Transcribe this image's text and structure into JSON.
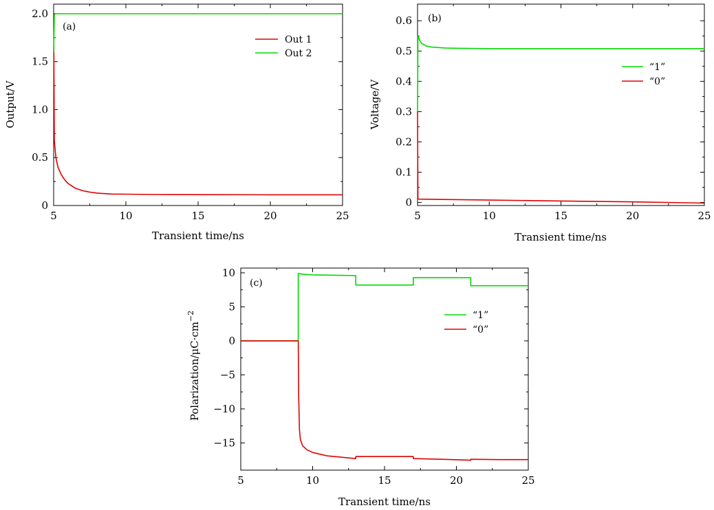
{
  "chart_data": [
    {
      "type": "line",
      "panel_label": "(a)",
      "xlabel": "Transient time/ns",
      "ylabel": "Output/V",
      "xlim": [
        5,
        25
      ],
      "ylim": [
        0,
        2.1
      ],
      "xticks": [
        5,
        10,
        15,
        20,
        25
      ],
      "xtick_labels": [
        "5",
        "10",
        "15",
        "20",
        "25"
      ],
      "yticks": [
        0,
        0.5,
        1.0,
        1.5,
        2.0
      ],
      "ytick_labels": [
        "0",
        "0.5",
        "1.0",
        "1.5",
        "2.0"
      ],
      "legend_position": "top-right",
      "grid": false,
      "series": [
        {
          "name": "Out 1",
          "color": "#e00000",
          "x": [
            5,
            5.05,
            5.15,
            5.3,
            5.5,
            5.75,
            6,
            6.5,
            7,
            7.5,
            8,
            9,
            10,
            12,
            15,
            20,
            25
          ],
          "y": [
            2.0,
            0.68,
            0.5,
            0.4,
            0.33,
            0.27,
            0.23,
            0.18,
            0.155,
            0.14,
            0.13,
            0.12,
            0.118,
            0.115,
            0.113,
            0.112,
            0.112
          ]
        },
        {
          "name": "Out 2",
          "color": "#00d800",
          "x": [
            5,
            5.05,
            5.1,
            6,
            10,
            15,
            20,
            25
          ],
          "y": [
            1.6,
            1.98,
            2.0,
            2.0,
            2.0,
            2.0,
            2.0,
            2.0
          ]
        }
      ]
    },
    {
      "type": "line",
      "panel_label": "(b)",
      "xlabel": "Transient time/ns",
      "ylabel": "Voltage/V",
      "xlim": [
        5,
        25
      ],
      "ylim": [
        -0.01,
        0.655
      ],
      "xticks": [
        5,
        10,
        15,
        20,
        25
      ],
      "xtick_labels": [
        "5",
        "10",
        "15",
        "20",
        "25"
      ],
      "yticks": [
        0,
        0.1,
        0.2,
        0.3,
        0.4,
        0.5,
        0.6
      ],
      "ytick_labels": [
        "0",
        "0.1",
        "0.2",
        "0.3",
        "0.4",
        "0.5",
        "0.6"
      ],
      "legend_position": "right",
      "grid": false,
      "series": [
        {
          "name": "“1”",
          "color": "#00d800",
          "x": [
            5,
            5.03,
            5.08,
            5.15,
            5.3,
            5.6,
            6,
            7,
            8,
            10,
            15,
            20,
            25
          ],
          "y": [
            0.3,
            0.55,
            0.545,
            0.535,
            0.525,
            0.517,
            0.513,
            0.51,
            0.509,
            0.508,
            0.508,
            0.508,
            0.508
          ]
        },
        {
          "name": "“0”",
          "color": "#e00000",
          "x": [
            5,
            5.03,
            5.1,
            10,
            15,
            20,
            25
          ],
          "y": [
            0.3,
            0.012,
            0.011,
            0.008,
            0.005,
            0.002,
            -0.002
          ]
        }
      ]
    },
    {
      "type": "line",
      "panel_label": "(c)",
      "xlabel": "Transient time/ns",
      "ylabel": "Polarization/μC·cm",
      "ylabel_superscript": "−2",
      "xlim": [
        5,
        25
      ],
      "ylim": [
        -19,
        10.7
      ],
      "xticks": [
        5,
        10,
        15,
        20,
        25
      ],
      "xtick_labels": [
        "5",
        "10",
        "15",
        "20",
        "25"
      ],
      "yticks": [
        -15,
        -10,
        -5,
        0,
        5,
        10
      ],
      "ytick_labels": [
        "−15",
        "−10",
        "−5",
        "0",
        "5",
        "10"
      ],
      "legend_position": "right",
      "grid": false,
      "series": [
        {
          "name": "“1”",
          "color": "#00d800",
          "x": [
            5,
            9.0,
            9.0,
            9.3,
            10,
            13.0,
            13.0,
            17.0,
            17.0,
            21.0,
            21.0,
            25
          ],
          "y": [
            0,
            0,
            9.9,
            9.8,
            9.7,
            9.6,
            8.2,
            8.2,
            9.3,
            9.3,
            8.1,
            8.1
          ]
        },
        {
          "name": "“0”",
          "color": "#e00000",
          "x": [
            5,
            9.0,
            9.03,
            9.08,
            9.15,
            9.3,
            9.6,
            10,
            11,
            12,
            13.0,
            13.0,
            15,
            17.0,
            17.0,
            19,
            21.0,
            21.0,
            23,
            25
          ],
          "y": [
            0,
            0,
            -8,
            -13,
            -14.5,
            -15.4,
            -16.0,
            -16.4,
            -16.9,
            -17.1,
            -17.3,
            -17.0,
            -17.0,
            -17.0,
            -17.3,
            -17.4,
            -17.55,
            -17.4,
            -17.45,
            -17.45
          ]
        }
      ]
    }
  ]
}
